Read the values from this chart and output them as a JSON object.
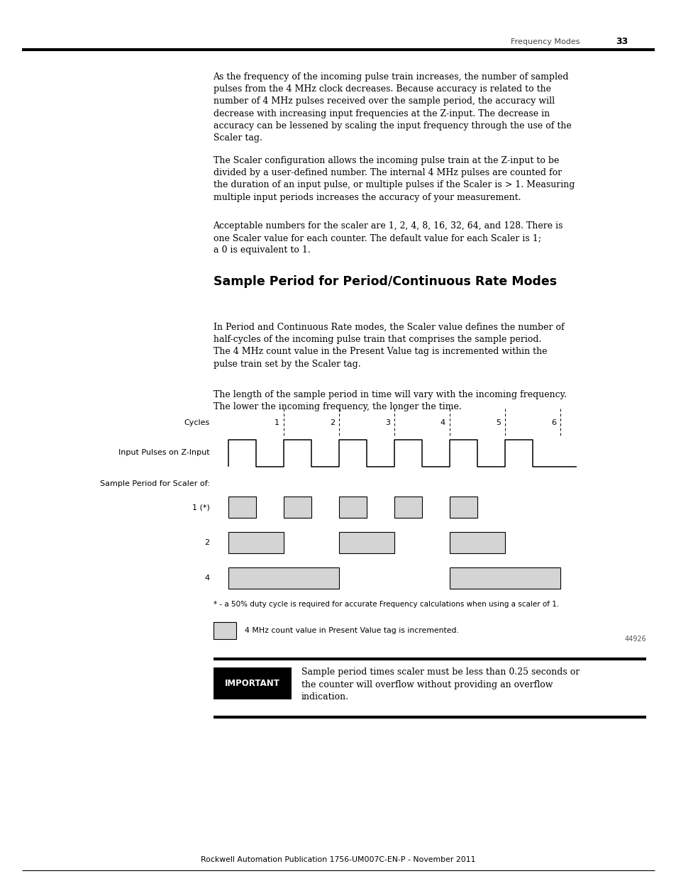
{
  "page_width": 9.54,
  "page_height": 12.35,
  "bg_color": "#ffffff",
  "header_text": "Frequency Modes",
  "header_page": "33",
  "paragraphs": [
    "As the frequency of the incoming pulse train increases, the number of sampled\npulses from the 4 MHz clock decreases. Because accuracy is related to the\nnumber of 4 MHz pulses received over the sample period, the accuracy will\ndecrease with increasing input frequencies at the Z-input. The decrease in\naccuracy can be lessened by scaling the input frequency through the use of the\nScaler tag.",
    "The Scaler configuration allows the incoming pulse train at the Z-input to be\ndivided by a user-defined number. The internal 4 MHz pulses are counted for\nthe duration of an input pulse, or multiple pulses if the Scaler is > 1. Measuring\nmultiple input periods increases the accuracy of your measurement.",
    "Acceptable numbers for the scaler are 1, 2, 4, 8, 16, 32, 64, and 128. There is\none Scaler value for each counter. The default value for each Scaler is 1;\na 0 is equivalent to 1."
  ],
  "section_title": "Sample Period for Period/Continuous Rate Modes",
  "section_paragraphs": [
    "In Period and Continuous Rate modes, the Scaler value defines the number of\nhalf-cycles of the incoming pulse train that comprises the sample period.\nThe 4 MHz count value in the Present Value tag is incremented within the\npulse train set by the Scaler tag.",
    "The length of the sample period in time will vary with the incoming frequency.\nThe lower the incoming frequency, the longer the time."
  ],
  "important_text": "Sample period times scaler must be less than 0.25 seconds or\nthe counter will overflow without providing an overflow\nindication.",
  "footnote": "* - a 50% duty cycle is required for accurate Frequency calculations when using a scaler of 1.",
  "legend_text": "4 MHz count value in Present Value tag is incremented.",
  "figure_number": "44926",
  "footer_text": "Rockwell Automation Publication 1756-UM007C-EN-P - November 2011",
  "gray_color": "#d4d4d4",
  "text_fontsize": 9.0,
  "diagram_label_fontsize": 8.0
}
